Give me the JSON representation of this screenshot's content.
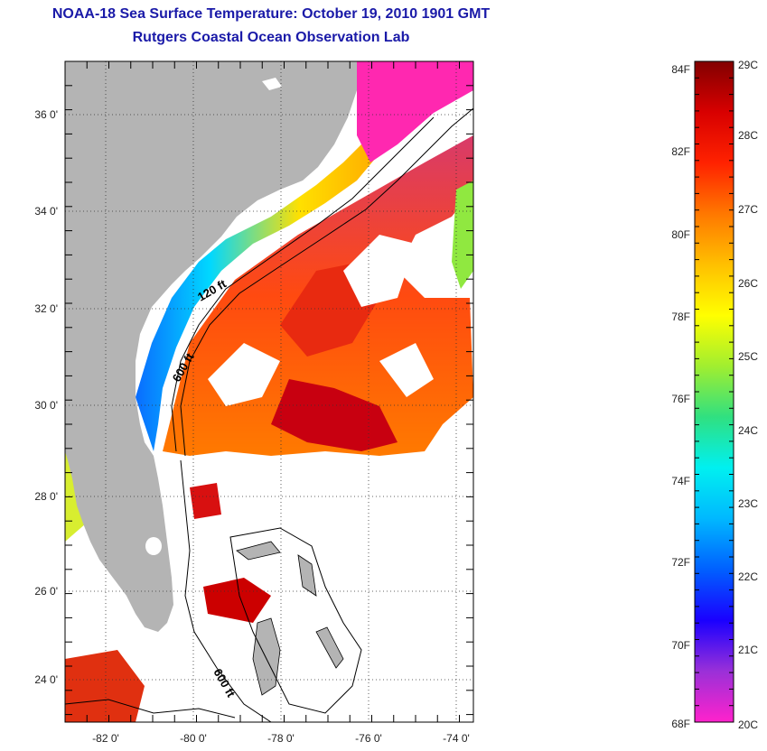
{
  "header": {
    "title": "NOAA-18 Sea Surface Temperature:  October 19, 2010 1901 GMT",
    "subtitle": "Rutgers Coastal Ocean Observation Lab"
  },
  "map": {
    "lat_labels": [
      "36 0'",
      "34 0'",
      "32 0'",
      "30 0'",
      "28 0'",
      "26 0'",
      "24 0'"
    ],
    "lon_labels": [
      "-82 0'",
      "-80 0'",
      "-78 0'",
      "-76 0'",
      "-74 0'"
    ],
    "contour_labels": [
      "120 ft",
      "600 ft",
      "600 ft"
    ],
    "colors": {
      "land": "#b4b4b4",
      "cloud": "#ffffff",
      "frame": "#000000"
    }
  },
  "colorbar": {
    "f_labels": [
      "84F",
      "82F",
      "80F",
      "78F",
      "76F",
      "74F",
      "72F",
      "70F",
      "68F"
    ],
    "c_labels": [
      "29C",
      "28C",
      "27C",
      "26C",
      "25C",
      "24C",
      "23C",
      "22C",
      "21C",
      "20C"
    ],
    "stops": [
      "#ff22cc",
      "#9a30d8",
      "#1a00ff",
      "#0060ff",
      "#00b8ff",
      "#00f0f0",
      "#30e080",
      "#a0ee30",
      "#ffff00",
      "#ffc000",
      "#ff7800",
      "#ff2200",
      "#d80000",
      "#820000"
    ]
  }
}
